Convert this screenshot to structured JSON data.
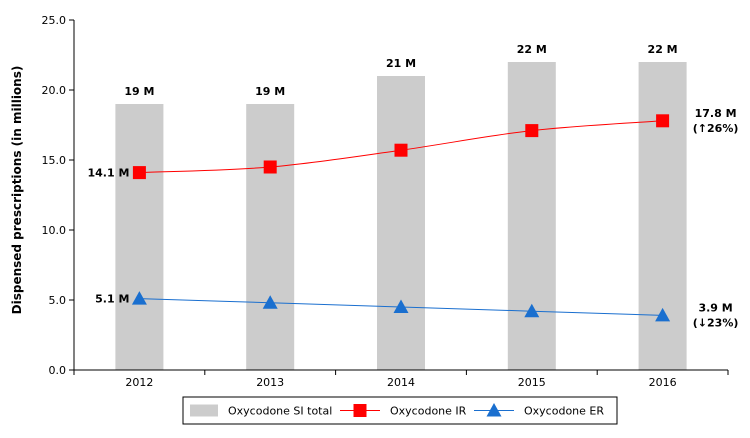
{
  "chart_data": {
    "type": "bar",
    "title": "",
    "xlabel": "",
    "ylabel": "Dispensed prescriptions (in millions)",
    "ylim": [
      0,
      25
    ],
    "yticks": [
      "0.0",
      "5.0",
      "10.0",
      "15.0",
      "20.0",
      "25.0"
    ],
    "ytick_values": [
      0,
      5,
      10,
      15,
      20,
      25
    ],
    "categories": [
      "2012",
      "2013",
      "2014",
      "2015",
      "2016"
    ],
    "grid": false,
    "legend_position": "bottom",
    "series": [
      {
        "name": "Oxycodone SI total",
        "kind": "bar",
        "color": "#cccccc",
        "values": [
          19,
          19,
          21,
          22,
          22
        ],
        "labels": [
          "19 M",
          "19 M",
          "21 M",
          "22 M",
          "22 M"
        ]
      },
      {
        "name": "Oxycodone IR",
        "kind": "line",
        "marker": "square",
        "color": "#ff0000",
        "values": [
          14.1,
          14.5,
          15.7,
          17.1,
          17.8
        ],
        "start_label": "14.1 M",
        "end_label": [
          "17.8 M",
          "(↑26%)"
        ]
      },
      {
        "name": "Oxycodone ER",
        "kind": "line",
        "marker": "triangle",
        "color": "#1a6fcf",
        "values": [
          5.1,
          4.8,
          4.5,
          4.2,
          3.9
        ],
        "start_label": "5.1 M",
        "end_label": [
          "3.9 M",
          "(↓23%)"
        ]
      }
    ]
  }
}
